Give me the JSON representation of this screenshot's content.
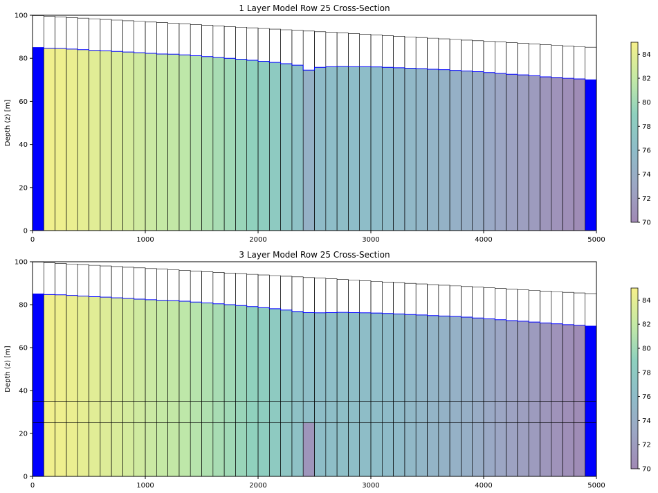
{
  "chart_data": [
    {
      "type": "heatmap",
      "title": "1 Layer Model Row 25 Cross-Section",
      "xlabel": "",
      "ylabel": "Depth (z) [m]",
      "xlim": [
        0,
        5000
      ],
      "ylim": [
        0,
        100
      ],
      "xticks": [
        "0",
        "1000",
        "2000",
        "3000",
        "4000",
        "5000"
      ],
      "yticks": [
        "0",
        "20",
        "40",
        "60",
        "80",
        "100"
      ],
      "cell_width": 100,
      "top_left": 100,
      "top_right": 85,
      "layer_bottoms": [
        0
      ],
      "head": [
        85.0,
        84.7,
        84.6,
        84.3,
        84.0,
        83.7,
        83.5,
        83.2,
        82.9,
        82.6,
        82.3,
        82.0,
        81.9,
        81.6,
        81.2,
        80.8,
        80.4,
        80.0,
        79.6,
        79.1,
        78.6,
        78.1,
        77.5,
        76.8,
        74.5,
        75.8,
        76.1,
        76.2,
        76.1,
        76.1,
        76.0,
        75.8,
        75.6,
        75.4,
        75.2,
        74.9,
        74.7,
        74.4,
        74.1,
        73.8,
        73.4,
        73.0,
        72.6,
        72.3,
        71.9,
        71.4,
        71.1,
        70.7,
        70.4,
        70.0
      ],
      "constant_head_columns": [
        0,
        49
      ],
      "colorbar": {
        "min": 70,
        "max": 85,
        "ticks": [
          "70",
          "72",
          "74",
          "76",
          "78",
          "80",
          "82",
          "84"
        ]
      }
    },
    {
      "type": "heatmap",
      "title": "3 Layer Model Row 25 Cross-Section",
      "xlabel": "",
      "ylabel": "Depth (z) [m]",
      "xlim": [
        0,
        5000
      ],
      "ylim": [
        0,
        100
      ],
      "xticks": [
        "0",
        "1000",
        "2000",
        "3000",
        "4000",
        "5000"
      ],
      "yticks": [
        "0",
        "20",
        "40",
        "60",
        "80",
        "100"
      ],
      "cell_width": 100,
      "top_left": 100,
      "top_right": 85,
      "layer_bottoms": [
        35,
        25,
        0
      ],
      "head": [
        85.0,
        84.7,
        84.6,
        84.3,
        84.0,
        83.7,
        83.5,
        83.2,
        82.9,
        82.6,
        82.3,
        82.0,
        81.9,
        81.6,
        81.2,
        80.8,
        80.4,
        80.0,
        79.6,
        79.1,
        78.6,
        78.1,
        77.5,
        76.8,
        76.3,
        76.2,
        76.3,
        76.4,
        76.3,
        76.2,
        76.1,
        75.9,
        75.7,
        75.4,
        75.2,
        74.9,
        74.7,
        74.5,
        74.2,
        73.8,
        73.4,
        73.0,
        72.6,
        72.3,
        71.9,
        71.5,
        71.1,
        70.7,
        70.4,
        70.0
      ],
      "bottom_layer_overrides": [
        {
          "column": 24,
          "value": 71.3
        }
      ],
      "constant_head_columns": [
        0,
        49
      ],
      "colorbar": {
        "min": 70,
        "max": 85,
        "ticks": [
          "70",
          "72",
          "74",
          "76",
          "78",
          "80",
          "82",
          "84"
        ]
      }
    }
  ],
  "colors": {
    "constant_head": "#0000ff",
    "water_table": "#0000ff",
    "grid_line": "#000000",
    "colormap_low": "#a287b4",
    "colormap_mid": "#8ecfc0",
    "colormap_high": "#f6f08a"
  }
}
